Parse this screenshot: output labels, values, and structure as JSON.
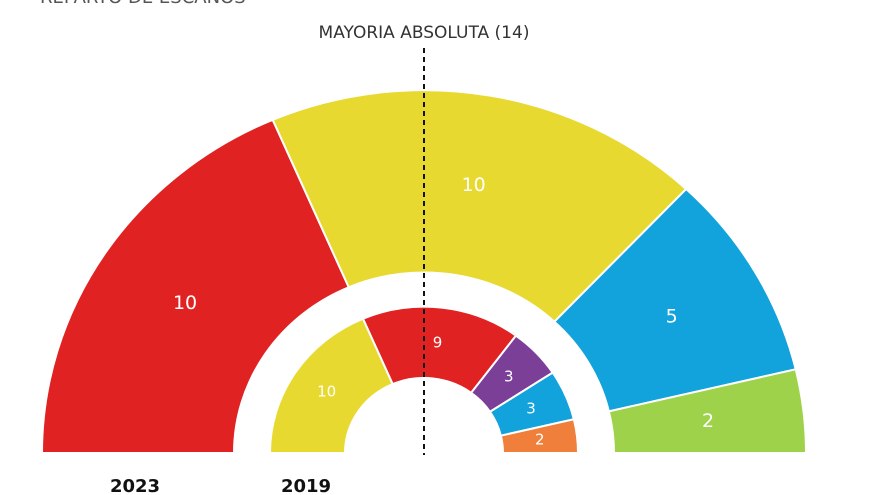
{
  "header": {
    "title": "REPARTO DE ESCAÑOS"
  },
  "annotation": "MAYORIA ABSOLUTA (14)",
  "chart_data": [
    {
      "type": "parliament",
      "title": "2023",
      "values": [
        10,
        10,
        5,
        2
      ],
      "colors": [
        "#e02222",
        "#e8d930",
        "#12a2dc",
        "#9ed24b"
      ]
    },
    {
      "type": "parliament",
      "title": "2019",
      "values": [
        10,
        9,
        3,
        3,
        2
      ],
      "colors": [
        "#e8d930",
        "#e02222",
        "#7b3f98",
        "#12a2dc",
        "#ef7f3a"
      ]
    }
  ]
}
